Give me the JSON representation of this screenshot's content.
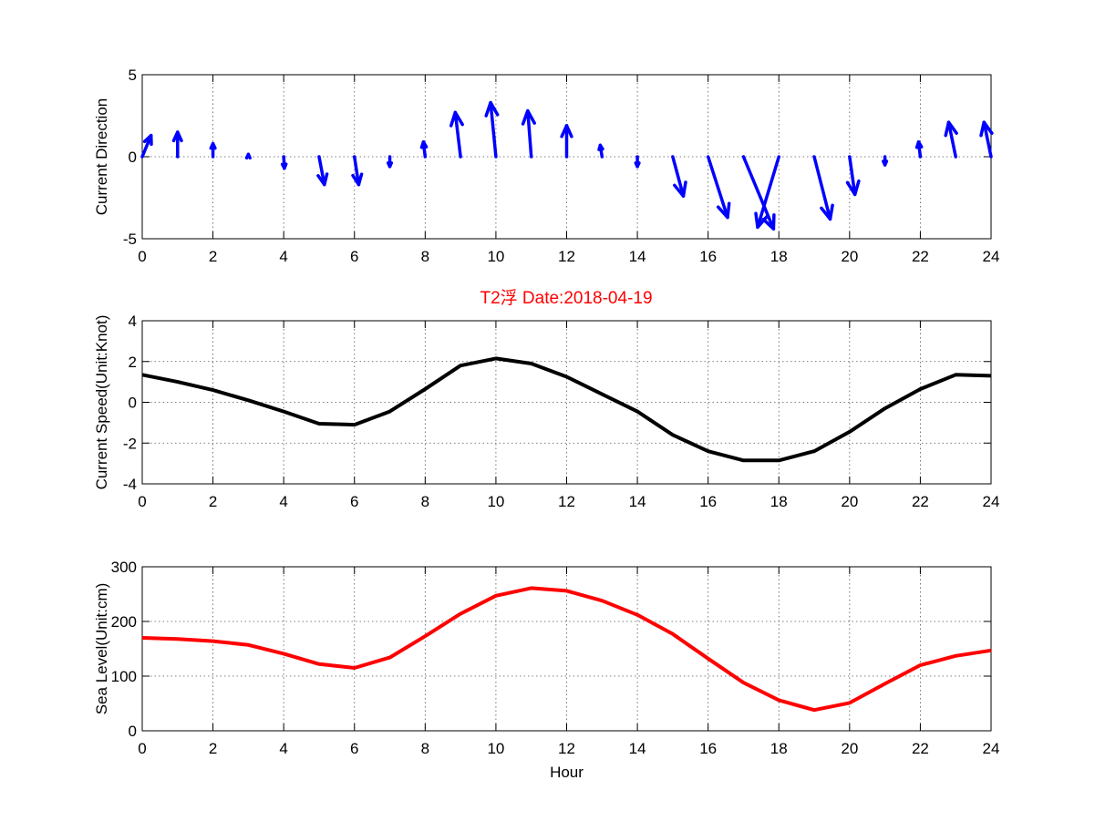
{
  "figure_title": "T2浮   Date:2018-04-19",
  "chart_data": [
    {
      "type": "quiver",
      "ylabel": "Current Direction",
      "xlabel": "",
      "xlim": [
        0,
        24
      ],
      "ylim": [
        -5,
        5
      ],
      "xticks": [
        "0",
        "2",
        "4",
        "6",
        "8",
        "10",
        "12",
        "14",
        "16",
        "18",
        "20",
        "22",
        "24"
      ],
      "yticks": [
        "-5",
        "0",
        "5"
      ],
      "grid": true,
      "color": "#0000ff",
      "x": [
        0,
        1,
        2,
        3,
        4,
        5,
        6,
        7,
        8,
        9,
        10,
        11,
        12,
        13,
        14,
        15,
        16,
        17,
        18,
        19,
        20,
        21,
        22,
        23,
        24
      ],
      "u": [
        0.25,
        0,
        0,
        0,
        0.02,
        0.15,
        0.12,
        0,
        -0.05,
        -0.15,
        -0.15,
        -0.1,
        0,
        -0.05,
        0,
        0.3,
        0.55,
        0.85,
        -0.6,
        0.45,
        0.15,
        0,
        -0.05,
        -0.2,
        -0.2
      ],
      "v": [
        1.3,
        1.5,
        0.8,
        0.15,
        -0.7,
        -1.7,
        -1.7,
        -0.6,
        0.9,
        2.7,
        3.3,
        2.8,
        1.9,
        0.7,
        -0.6,
        -2.4,
        -3.7,
        -4.4,
        -4.3,
        -3.8,
        -2.3,
        -0.5,
        0.9,
        2.1,
        2.1
      ]
    },
    {
      "type": "line",
      "ylabel": "Current Speed(Unit:Knot)",
      "xlabel": "",
      "xlim": [
        0,
        24
      ],
      "ylim": [
        -4,
        4
      ],
      "xticks": [
        "0",
        "2",
        "4",
        "6",
        "8",
        "10",
        "12",
        "14",
        "16",
        "18",
        "20",
        "22",
        "24"
      ],
      "yticks": [
        "-4",
        "-2",
        "0",
        "2",
        "4"
      ],
      "grid": true,
      "color": "#000000",
      "x": [
        0,
        1,
        2,
        3,
        4,
        5,
        6,
        7,
        8,
        9,
        10,
        11,
        12,
        13,
        14,
        15,
        16,
        17,
        18,
        19,
        20,
        21,
        22,
        23,
        24
      ],
      "y": [
        1.35,
        1.0,
        0.6,
        0.1,
        -0.45,
        -1.05,
        -1.1,
        -0.45,
        0.65,
        1.8,
        2.15,
        1.9,
        1.25,
        0.4,
        -0.45,
        -1.6,
        -2.4,
        -2.85,
        -2.85,
        -2.4,
        -1.45,
        -0.3,
        0.65,
        1.35,
        1.3
      ]
    },
    {
      "type": "line",
      "ylabel": "Sea Level(Unit:cm)",
      "xlabel": "Hour",
      "xlim": [
        0,
        24
      ],
      "ylim": [
        0,
        300
      ],
      "xticks": [
        "0",
        "2",
        "4",
        "6",
        "8",
        "10",
        "12",
        "14",
        "16",
        "18",
        "20",
        "22",
        "24"
      ],
      "yticks": [
        "0",
        "100",
        "200",
        "300"
      ],
      "grid": true,
      "color": "#ff0000",
      "x": [
        0,
        1,
        2,
        3,
        4,
        5,
        6,
        7,
        8,
        9,
        10,
        11,
        12,
        13,
        14,
        15,
        16,
        17,
        18,
        19,
        20,
        21,
        22,
        23,
        24
      ],
      "y": [
        170,
        168,
        164,
        157,
        141,
        122,
        115,
        134,
        173,
        214,
        247,
        261,
        256,
        238,
        212,
        177,
        132,
        88,
        56,
        38,
        51,
        86,
        120,
        137,
        147
      ]
    }
  ]
}
